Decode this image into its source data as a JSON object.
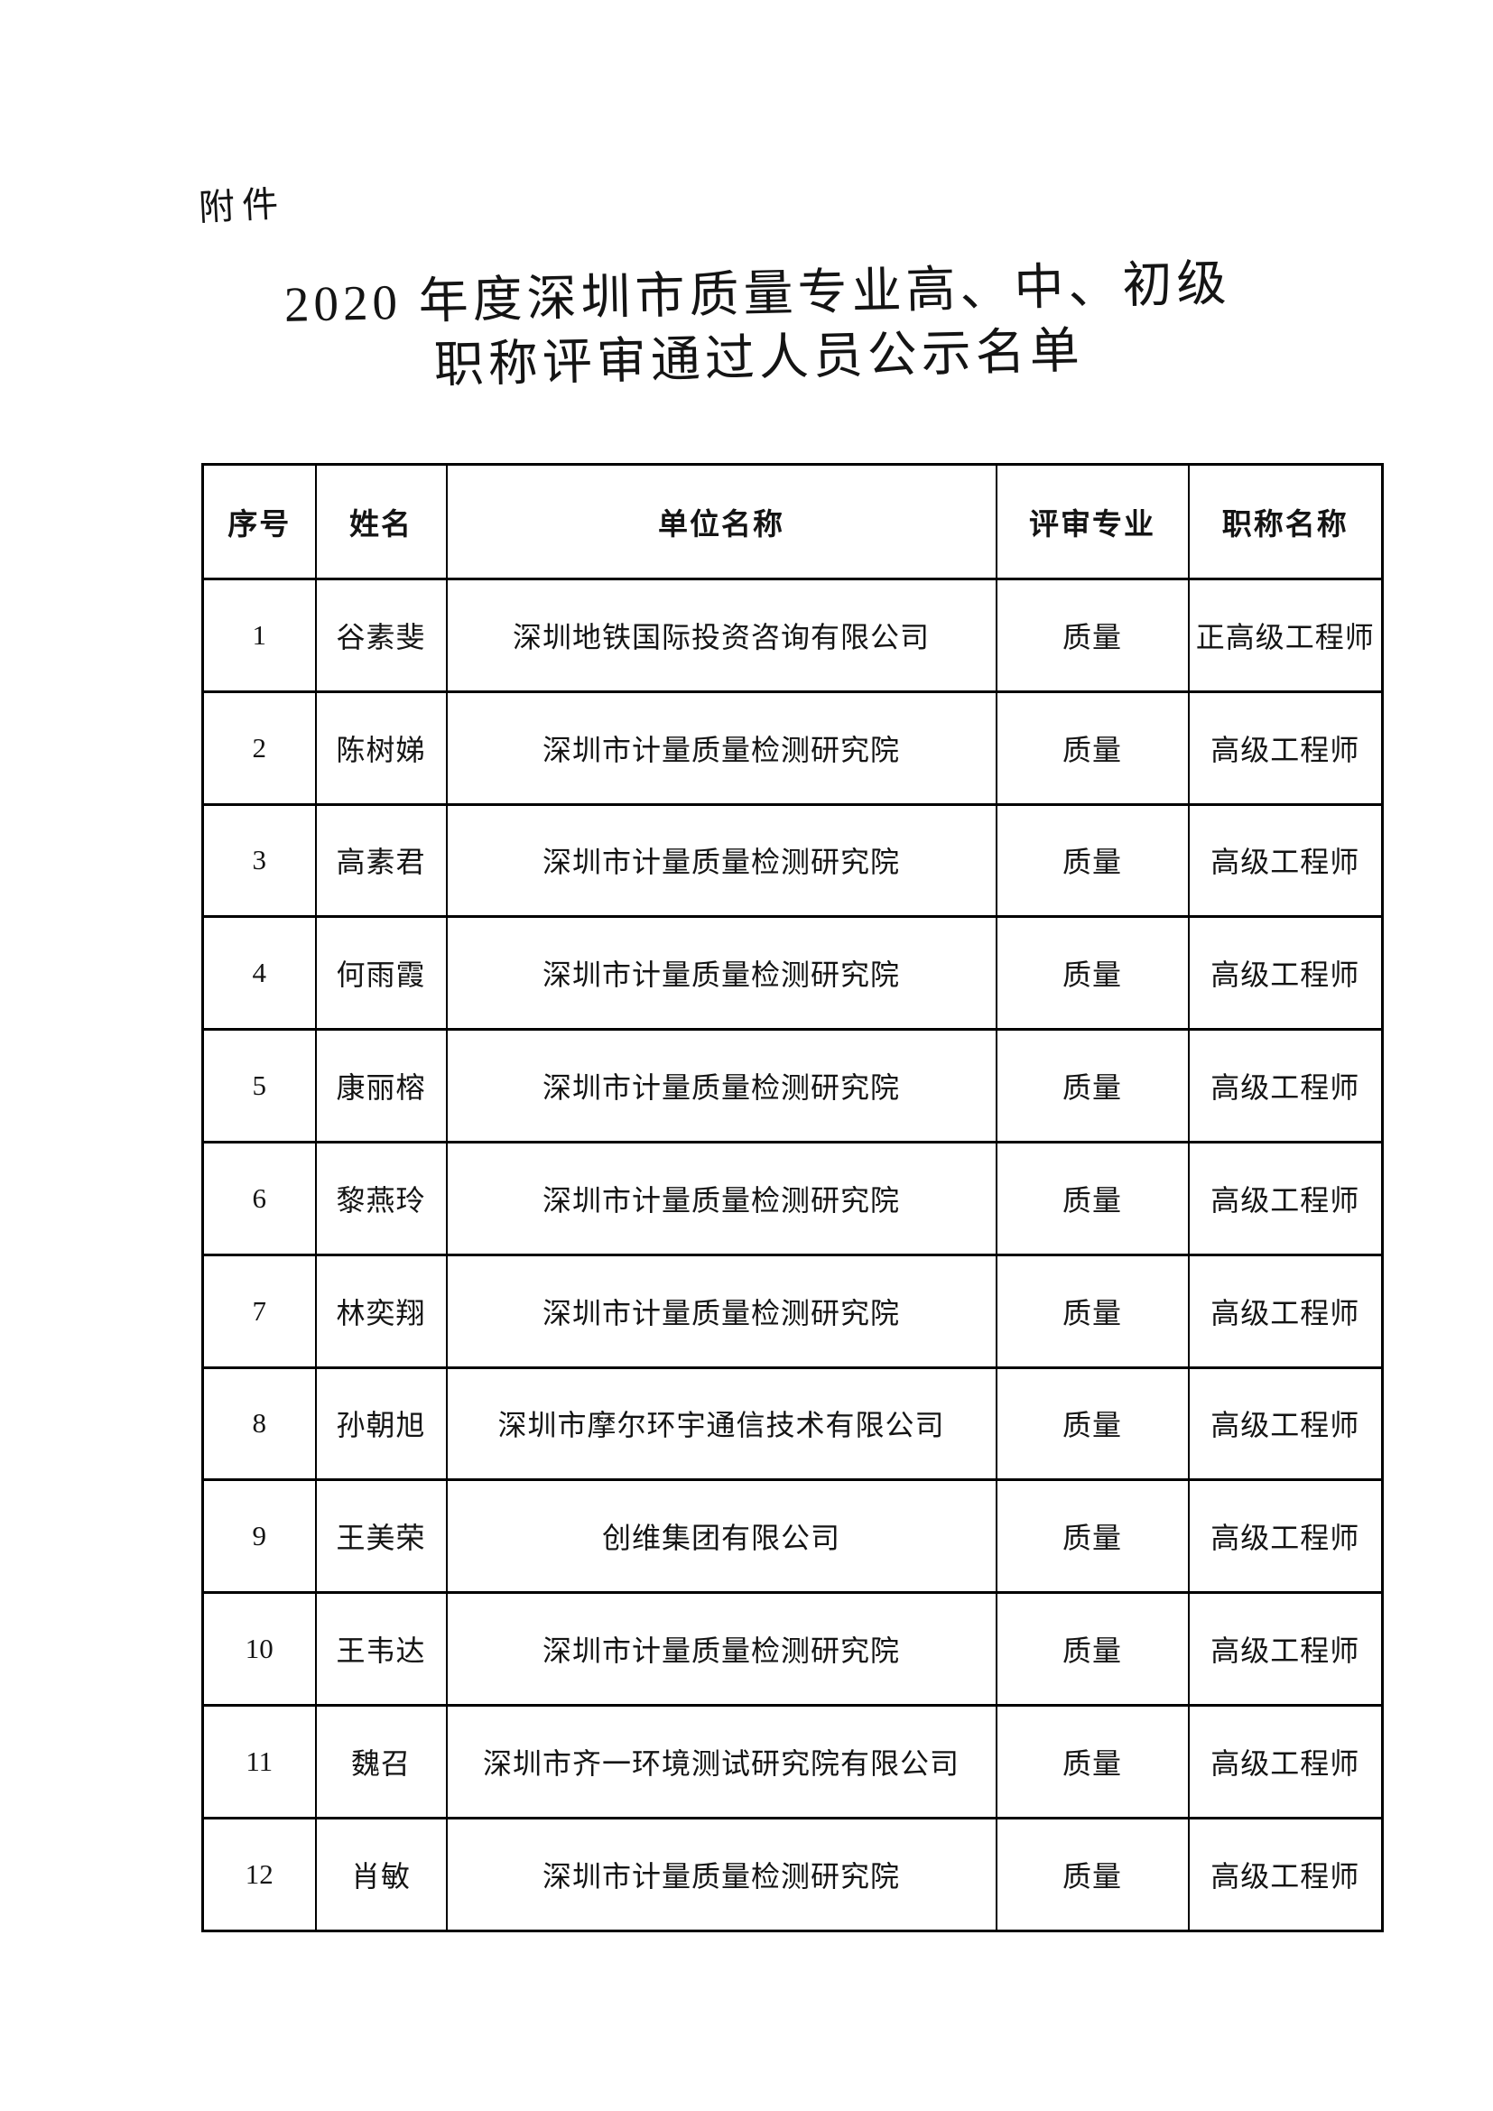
{
  "page": {
    "attachment_label": "附件",
    "title_line1": "2020 年度深圳市质量专业高、中、初级",
    "title_line2": "职称评审通过人员公示名单"
  },
  "table": {
    "headers": [
      "序号",
      "姓名",
      "单位名称",
      "评审专业",
      "职称名称"
    ],
    "column_names": [
      "row-number-cell",
      "name-cell",
      "organization-cell",
      "specialty-cell",
      "title-cell"
    ],
    "rows": [
      [
        "1",
        "谷素斐",
        "深圳地铁国际投资咨询有限公司",
        "质量",
        "正高级工程师"
      ],
      [
        "2",
        "陈树娣",
        "深圳市计量质量检测研究院",
        "质量",
        "高级工程师"
      ],
      [
        "3",
        "高素君",
        "深圳市计量质量检测研究院",
        "质量",
        "高级工程师"
      ],
      [
        "4",
        "何雨霞",
        "深圳市计量质量检测研究院",
        "质量",
        "高级工程师"
      ],
      [
        "5",
        "康丽榕",
        "深圳市计量质量检测研究院",
        "质量",
        "高级工程师"
      ],
      [
        "6",
        "黎燕玲",
        "深圳市计量质量检测研究院",
        "质量",
        "高级工程师"
      ],
      [
        "7",
        "林奕翔",
        "深圳市计量质量检测研究院",
        "质量",
        "高级工程师"
      ],
      [
        "8",
        "孙朝旭",
        "深圳市摩尔环宇通信技术有限公司",
        "质量",
        "高级工程师"
      ],
      [
        "9",
        "王美荣",
        "创维集团有限公司",
        "质量",
        "高级工程师"
      ],
      [
        "10",
        "王韦达",
        "深圳市计量质量检测研究院",
        "质量",
        "高级工程师"
      ],
      [
        "11",
        "魏召",
        "深圳市齐一环境测试研究院有限公司",
        "质量",
        "高级工程师"
      ],
      [
        "12",
        "肖敏",
        "深圳市计量质量检测研究院",
        "质量",
        "高级工程师"
      ]
    ]
  },
  "colors": {
    "background": "#ffffff",
    "text": "#141414",
    "border": "#000000"
  }
}
